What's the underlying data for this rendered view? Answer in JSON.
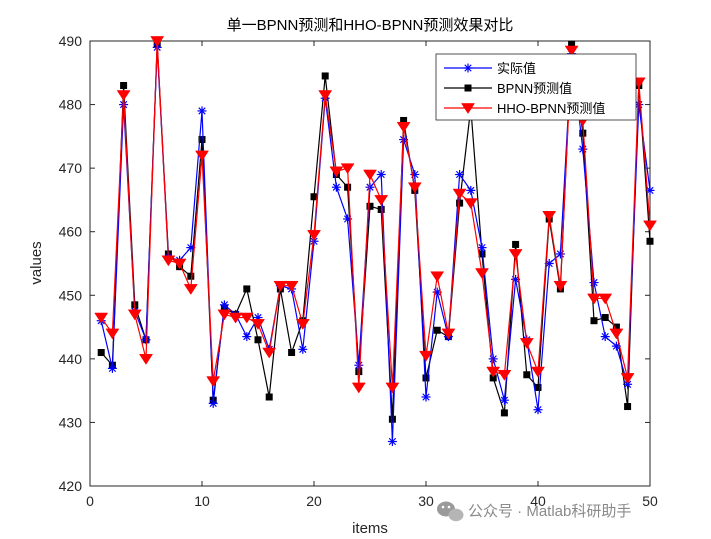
{
  "chart_data": {
    "type": "line",
    "title": "单一BPNN预测和HHO-BPNN预测效果对比",
    "xlabel": "items",
    "ylabel": "values",
    "xlim": [
      0,
      50
    ],
    "ylim": [
      420,
      490
    ],
    "x_ticks": [
      "0",
      "10",
      "20",
      "30",
      "40",
      "50"
    ],
    "y_ticks": [
      "420",
      "430",
      "440",
      "450",
      "460",
      "470",
      "480",
      "490"
    ],
    "grid": false,
    "legend_position": "top-right",
    "x": [
      1,
      2,
      3,
      4,
      5,
      6,
      7,
      8,
      9,
      10,
      11,
      12,
      13,
      14,
      15,
      16,
      17,
      18,
      19,
      20,
      21,
      22,
      23,
      24,
      25,
      26,
      27,
      28,
      29,
      30,
      31,
      32,
      33,
      34,
      35,
      36,
      37,
      38,
      39,
      40,
      41,
      42,
      43,
      44,
      45,
      46,
      47,
      48,
      49,
      50
    ],
    "series": [
      {
        "name": "实际值",
        "color": "#0000ff",
        "marker": "asterisk",
        "values": [
          446.0,
          438.5,
          480.0,
          447.5,
          443.0,
          489.0,
          456.0,
          455.5,
          457.5,
          479.0,
          433.0,
          448.5,
          447.0,
          443.5,
          446.5,
          441.5,
          451.5,
          451.0,
          441.5,
          458.5,
          481.0,
          467.0,
          462.0,
          439.0,
          467.0,
          469.0,
          427.0,
          474.5,
          469.0,
          434.0,
          450.5,
          443.5,
          469.0,
          466.5,
          457.5,
          440.0,
          433.5,
          452.5,
          443.0,
          432.0,
          455.0,
          456.5,
          488.0,
          473.0,
          452.0,
          443.5,
          442.0,
          436.0,
          480.0,
          466.5
        ]
      },
      {
        "name": "BPNN预测值",
        "color": "#000000",
        "marker": "square",
        "values": [
          441.0,
          439.0,
          483.0,
          448.5,
          443.0,
          489.5,
          456.5,
          454.5,
          453.0,
          474.5,
          433.5,
          448.0,
          447.0,
          451.0,
          443.0,
          434.0,
          451.0,
          441.0,
          446.0,
          465.5,
          484.5,
          469.0,
          467.0,
          438.0,
          464.0,
          463.5,
          430.5,
          477.5,
          466.5,
          437.0,
          444.5,
          443.5,
          464.5,
          479.5,
          456.5,
          437.0,
          431.5,
          458.0,
          437.5,
          435.5,
          462.0,
          451.0,
          489.5,
          475.5,
          446.0,
          446.5,
          445.0,
          432.5,
          483.0,
          458.5
        ]
      },
      {
        "name": "HHO-BPNN预测值",
        "color": "#ff0000",
        "marker": "triangle-down",
        "values": [
          446.5,
          444.0,
          481.5,
          447.0,
          440.0,
          490.0,
          455.5,
          455.0,
          451.0,
          472.0,
          436.5,
          447.0,
          446.5,
          446.5,
          445.5,
          441.0,
          451.5,
          451.5,
          445.5,
          459.5,
          481.5,
          469.5,
          470.0,
          435.5,
          469.0,
          465.0,
          435.5,
          476.5,
          467.0,
          440.5,
          453.0,
          444.0,
          466.0,
          464.5,
          453.5,
          438.0,
          437.5,
          456.5,
          442.5,
          438.0,
          462.5,
          451.5,
          488.5,
          477.5,
          449.5,
          449.5,
          444.0,
          437.0,
          483.5,
          461.0
        ]
      }
    ]
  },
  "watermark": {
    "icon": "wechat-icon",
    "text": "公众号 · Matlab科研助手"
  }
}
